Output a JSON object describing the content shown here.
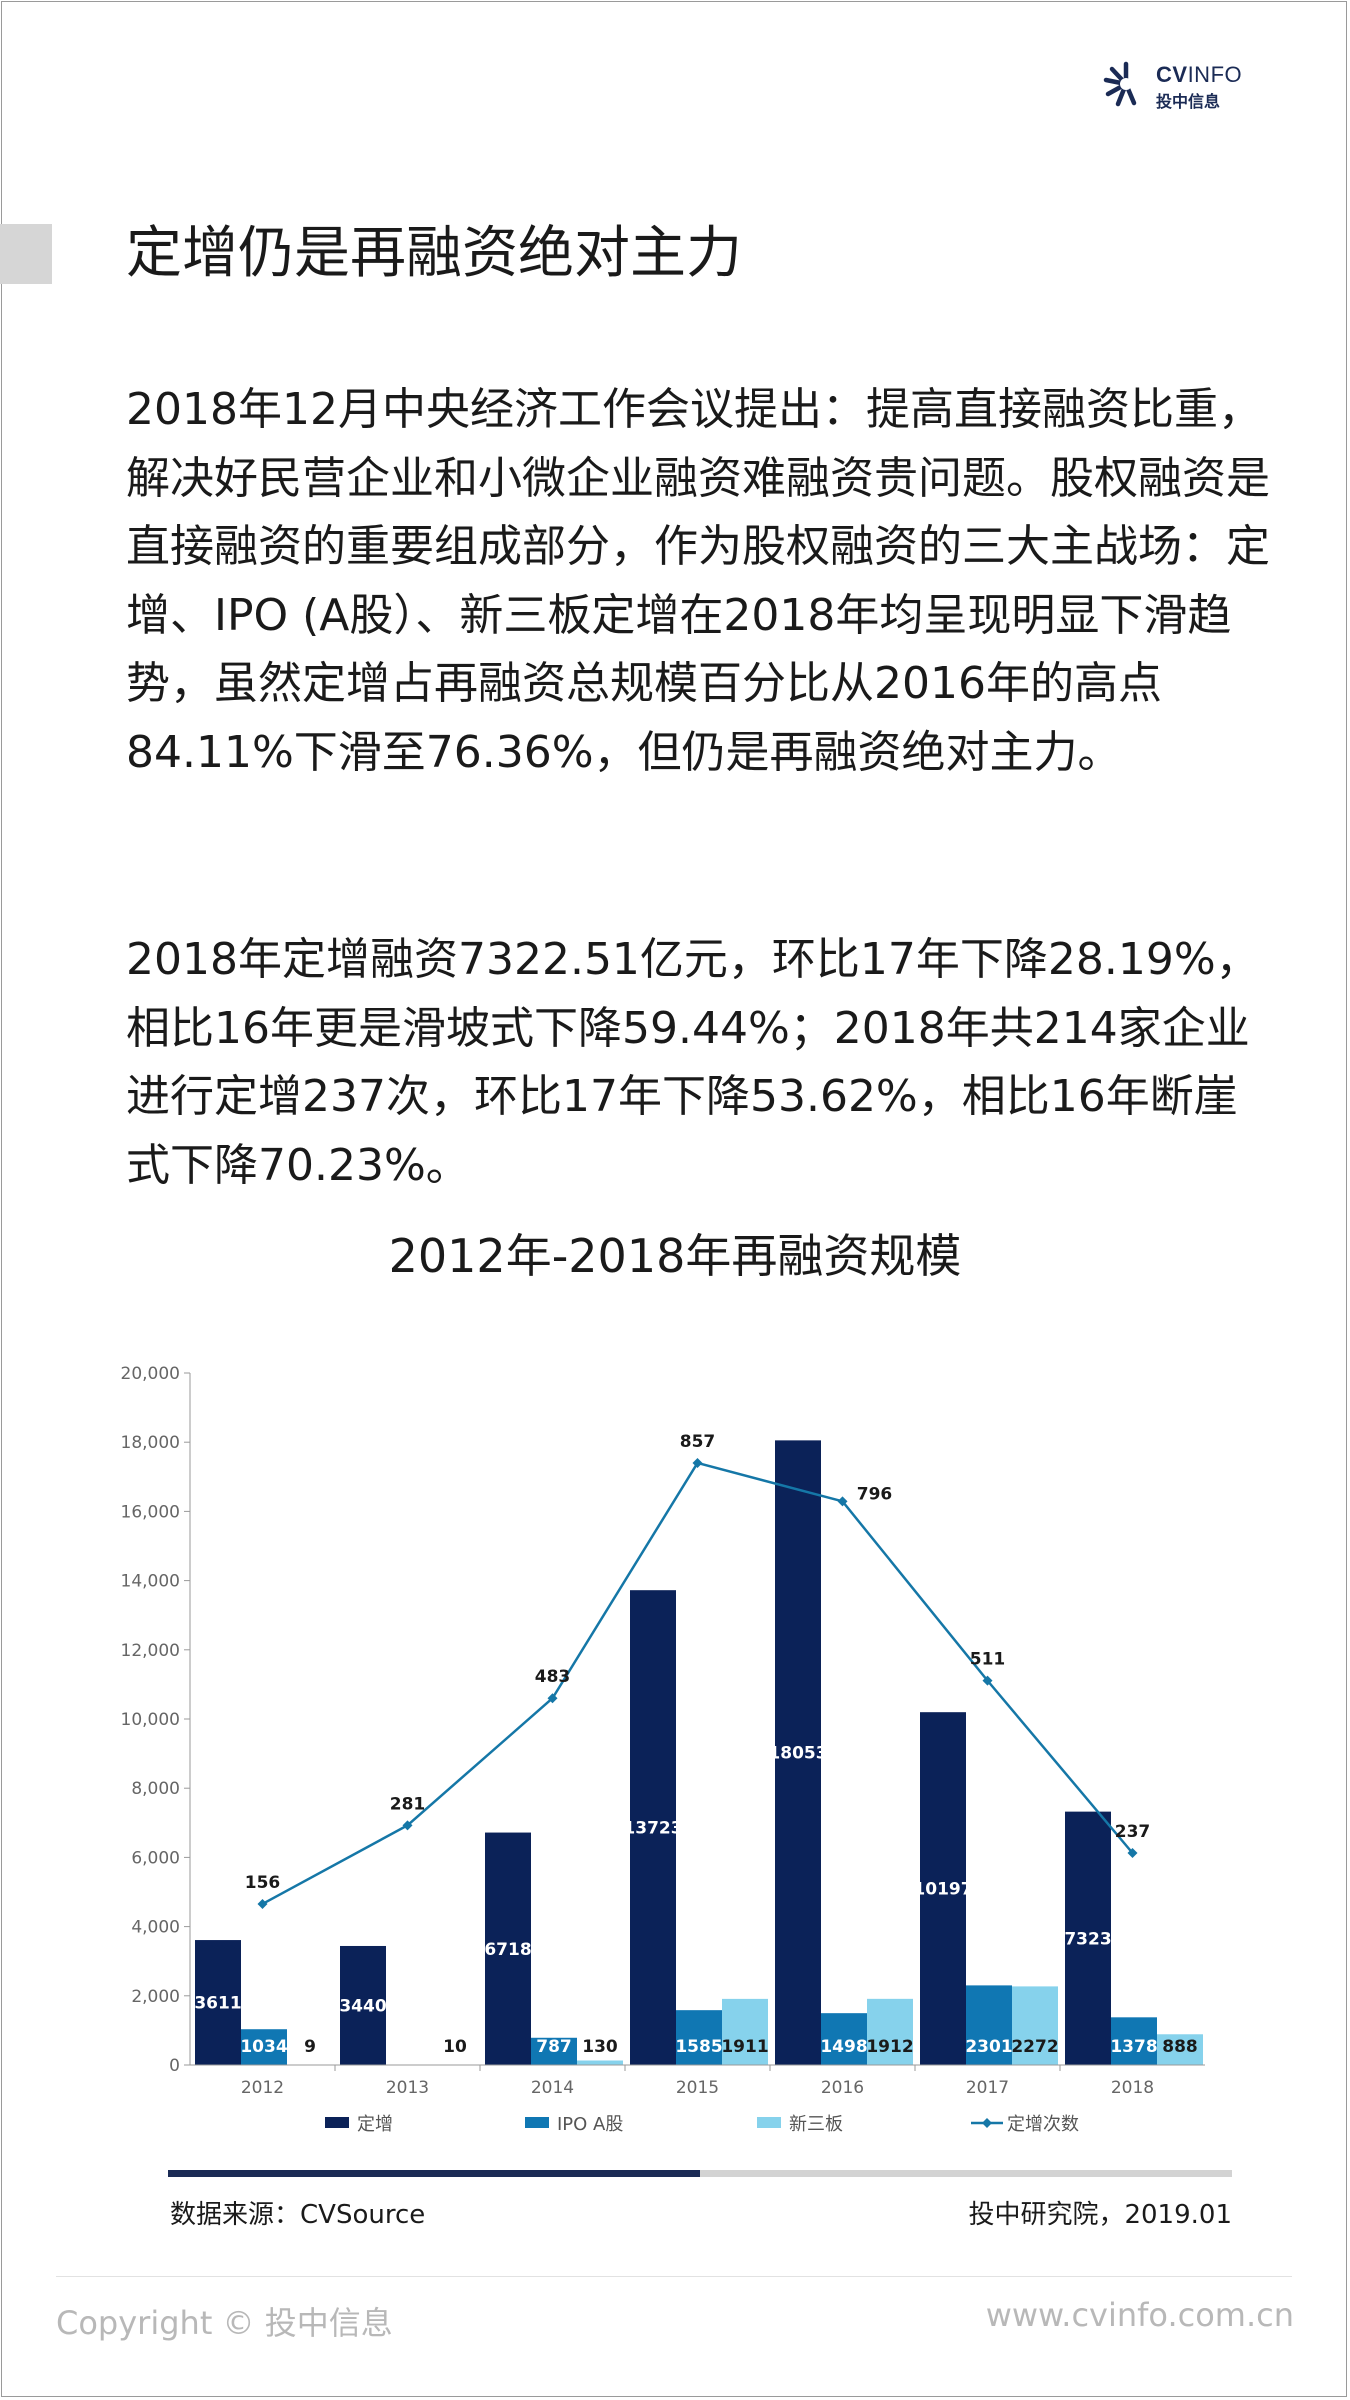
{
  "header": {
    "logo_brand_bold": "CV",
    "logo_brand_light": "INFO",
    "logo_sub": "投中信息",
    "title": "定增仍是再融资绝对主力"
  },
  "paragraphs": [
    "2018年12月中央经济工作会议提出：提高直接融资比重，解决好民营企业和小微企业融资难融资贵问题。股权融资是直接融资的重要组成部分，作为股权融资的三大主战场：定增、IPO (A股）、新三板定增在2018年均呈现明显下滑趋势，虽然定增占再融资总规模百分比从2016年的高点84.11%下滑至76.36%，但仍是再融资绝对主力。",
    "2018年定增融资7322.51亿元，环比17年下降28.19%，相比16年更是滑坡式下降59.44%；2018年共214家企业进行定增237次，环比17年下降53.62%，相比16年断崖式下降70.23%。"
  ],
  "chart_data": {
    "type": "bar",
    "title": "2012年-2018年再融资规模",
    "categories": [
      "2012",
      "2013",
      "2014",
      "2015",
      "2016",
      "2017",
      "2018"
    ],
    "series": [
      {
        "name": "定增",
        "type": "bar",
        "color": "#0b2258",
        "values": [
          3611,
          3440,
          6718,
          13723,
          18053,
          10197,
          7323
        ]
      },
      {
        "name": "IPO A股",
        "type": "bar",
        "color": "#1077b3",
        "values": [
          1034,
          0,
          787,
          1585,
          1498,
          2301,
          1378
        ]
      },
      {
        "name": "新三板",
        "type": "bar",
        "color": "#86d2ec",
        "values": [
          9,
          10,
          130,
          1911,
          1912,
          2272,
          888
        ]
      },
      {
        "name": "定增次数",
        "type": "line",
        "color": "#1577a7",
        "values": [
          156,
          281,
          483,
          857,
          796,
          511,
          237
        ]
      }
    ],
    "yticks": [
      0,
      2000,
      4000,
      6000,
      8000,
      10000,
      12000,
      14000,
      16000,
      18000,
      20000
    ],
    "ytick_labels": [
      "0",
      "2,000",
      "4,000",
      "6,000",
      "8,000",
      "10,000",
      "12,000",
      "14,000",
      "16,000",
      "18,000",
      "20,000"
    ],
    "ylim": [
      0,
      20000
    ],
    "line_ylim": [
      -100,
      1000
    ],
    "legend": "bottom",
    "grid": false
  },
  "reading_progress": 0.5,
  "footer": {
    "source": "数据来源：CVSource",
    "org_date": "投中研究院，2019.01",
    "copyright": "Copyright © 投中信息",
    "website": "www.cvinfo.com.cn"
  }
}
